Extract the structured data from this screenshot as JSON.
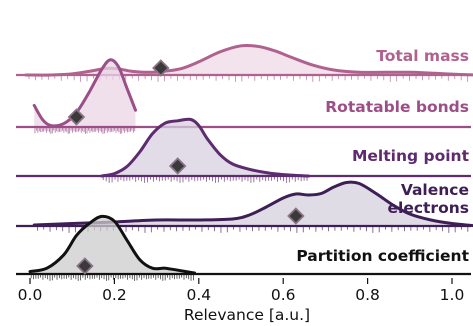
{
  "chart_data": {
    "type": "ridgeline",
    "xlabel": "Relevance [a.u.]",
    "xlim": [
      -0.02,
      1.06
    ],
    "x_ticks": [
      0.0,
      0.2,
      0.4,
      0.6,
      0.8,
      1.0
    ],
    "x_tick_labels": [
      "0.0",
      "0.2",
      "0.4",
      "0.6",
      "0.8",
      "1.0"
    ],
    "grid": false,
    "legend": "none (labels printed on each ridge)",
    "series": [
      {
        "name": "Total mass",
        "color": "#b0628f",
        "fill": "#edd9e5",
        "x_range": [
          -0.01,
          1.06
        ],
        "density": [
          [
            -0.01,
            0.0
          ],
          [
            0.05,
            0.0
          ],
          [
            0.1,
            0.02
          ],
          [
            0.15,
            0.08
          ],
          [
            0.18,
            0.12
          ],
          [
            0.21,
            0.11
          ],
          [
            0.24,
            0.07
          ],
          [
            0.28,
            0.05
          ],
          [
            0.32,
            0.07
          ],
          [
            0.36,
            0.12
          ],
          [
            0.4,
            0.24
          ],
          [
            0.45,
            0.42
          ],
          [
            0.5,
            0.53
          ],
          [
            0.54,
            0.52
          ],
          [
            0.58,
            0.44
          ],
          [
            0.62,
            0.32
          ],
          [
            0.67,
            0.18
          ],
          [
            0.72,
            0.09
          ],
          [
            0.78,
            0.05
          ],
          [
            0.84,
            0.05
          ],
          [
            0.9,
            0.05
          ],
          [
            0.96,
            0.03
          ],
          [
            1.02,
            0.01
          ],
          [
            1.06,
            0.0
          ]
        ],
        "marker": 0.31
      },
      {
        "name": "Rotatable bonds",
        "color": "#9b4e87",
        "fill": "#ead6e6",
        "x_range": [
          0.01,
          0.25
        ],
        "density": [
          [
            0.01,
            0.45
          ],
          [
            0.03,
            0.15
          ],
          [
            0.05,
            0.03
          ],
          [
            0.08,
            0.07
          ],
          [
            0.11,
            0.3
          ],
          [
            0.14,
            0.72
          ],
          [
            0.17,
            1.2
          ],
          [
            0.19,
            1.4
          ],
          [
            0.21,
            1.25
          ],
          [
            0.23,
            0.8
          ],
          [
            0.25,
            0.35
          ]
        ],
        "marker": 0.11
      },
      {
        "name": "Melting point",
        "color": "#5d2b6e",
        "fill": "#d8cfe0",
        "x_range": [
          0.17,
          0.66
        ],
        "density": [
          [
            0.17,
            0.0
          ],
          [
            0.2,
            0.05
          ],
          [
            0.23,
            0.2
          ],
          [
            0.26,
            0.5
          ],
          [
            0.29,
            0.88
          ],
          [
            0.32,
            1.1
          ],
          [
            0.35,
            1.15
          ],
          [
            0.38,
            1.18
          ],
          [
            0.4,
            1.05
          ],
          [
            0.42,
            0.78
          ],
          [
            0.45,
            0.45
          ],
          [
            0.48,
            0.25
          ],
          [
            0.52,
            0.14
          ],
          [
            0.56,
            0.07
          ],
          [
            0.6,
            0.03
          ],
          [
            0.66,
            0.0
          ]
        ],
        "marker": 0.35
      },
      {
        "name": "Valence electrons",
        "name_lines": [
          "Valence",
          "electrons"
        ],
        "color": "#3e1f55",
        "fill": "#d5d0dd",
        "x_range": [
          0.01,
          1.06
        ],
        "density": [
          [
            0.01,
            0.02
          ],
          [
            0.1,
            0.05
          ],
          [
            0.2,
            0.08
          ],
          [
            0.3,
            0.12
          ],
          [
            0.4,
            0.12
          ],
          [
            0.48,
            0.14
          ],
          [
            0.52,
            0.22
          ],
          [
            0.56,
            0.38
          ],
          [
            0.6,
            0.56
          ],
          [
            0.63,
            0.64
          ],
          [
            0.66,
            0.62
          ],
          [
            0.69,
            0.65
          ],
          [
            0.72,
            0.78
          ],
          [
            0.75,
            0.87
          ],
          [
            0.78,
            0.85
          ],
          [
            0.82,
            0.65
          ],
          [
            0.86,
            0.42
          ],
          [
            0.9,
            0.24
          ],
          [
            0.95,
            0.12
          ],
          [
            1.0,
            0.05
          ],
          [
            1.06,
            0.0
          ]
        ],
        "marker": 0.63
      },
      {
        "name": "Partition coefficient",
        "color": "#111111",
        "fill": "#cccccc",
        "x_range": [
          0.0,
          0.39
        ],
        "density": [
          [
            0.0,
            0.05
          ],
          [
            0.04,
            0.12
          ],
          [
            0.08,
            0.4
          ],
          [
            0.11,
            0.8
          ],
          [
            0.14,
            1.05
          ],
          [
            0.17,
            1.2
          ],
          [
            0.2,
            1.1
          ],
          [
            0.23,
            0.7
          ],
          [
            0.26,
            0.3
          ],
          [
            0.29,
            0.12
          ],
          [
            0.32,
            0.12
          ],
          [
            0.35,
            0.08
          ],
          [
            0.39,
            0.02
          ]
        ],
        "marker": 0.13
      }
    ]
  }
}
